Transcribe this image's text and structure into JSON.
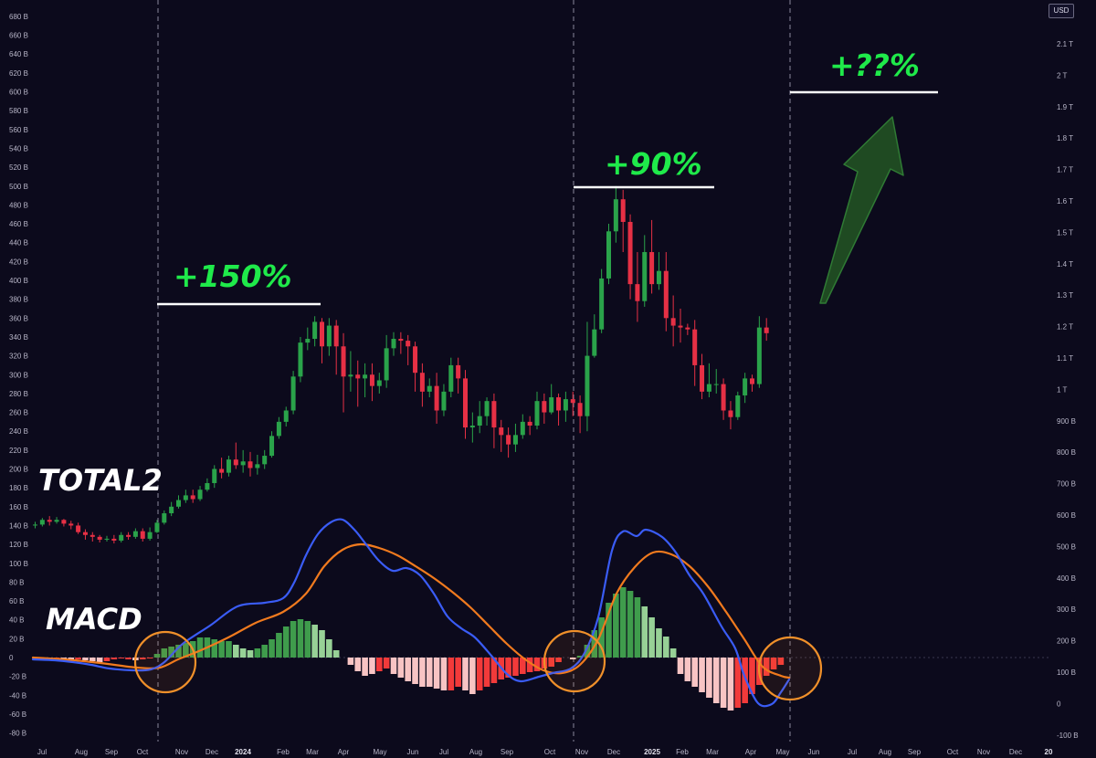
{
  "chart_data": {
    "type": "candlestick",
    "symbol": "TOTAL2",
    "currency": "USD",
    "grid": false,
    "left_axis": {
      "ticks": [
        "680 B",
        "660 B",
        "640 B",
        "620 B",
        "600 B",
        "580 B",
        "560 B",
        "540 B",
        "520 B",
        "500 B",
        "480 B",
        "460 B",
        "440 B",
        "420 B",
        "400 B",
        "380 B",
        "360 B",
        "340 B",
        "320 B",
        "300 B",
        "280 B",
        "260 B",
        "240 B",
        "220 B",
        "200 B",
        "180 B",
        "160 B",
        "140 B",
        "120 B",
        "100 B",
        "80 B",
        "60 B",
        "40 B",
        "20 B",
        "0",
        "-20 B",
        "-40 B",
        "-60 B",
        "-80 B"
      ],
      "range_billions": [
        -80,
        680
      ]
    },
    "right_axis": {
      "ticks": [
        "2.1 T",
        "2 T",
        "1.9 T",
        "1.8 T",
        "1.7 T",
        "1.6 T",
        "1.5 T",
        "1.4 T",
        "1.3 T",
        "1.2 T",
        "1.1 T",
        "1 T",
        "900 B",
        "800 B",
        "700 B",
        "600 B",
        "500 B",
        "400 B",
        "300 B",
        "200 B",
        "100 B",
        "0",
        "-100 B"
      ],
      "range_billions": [
        -100,
        2100
      ]
    },
    "x_axis": {
      "ticks": [
        {
          "label": "Jul",
          "bold": false
        },
        {
          "label": "Aug",
          "bold": false
        },
        {
          "label": "Sep",
          "bold": false
        },
        {
          "label": "Oct",
          "bold": false
        },
        {
          "label": "Nov",
          "bold": false
        },
        {
          "label": "Dec",
          "bold": false
        },
        {
          "label": "2024",
          "bold": true
        },
        {
          "label": "Feb",
          "bold": false
        },
        {
          "label": "Mar",
          "bold": false
        },
        {
          "label": "Apr",
          "bold": false
        },
        {
          "label": "May",
          "bold": false
        },
        {
          "label": "Jun",
          "bold": false
        },
        {
          "label": "Jul",
          "bold": false
        },
        {
          "label": "Aug",
          "bold": false
        },
        {
          "label": "Sep",
          "bold": false
        },
        {
          "label": "Oct",
          "bold": false
        },
        {
          "label": "Nov",
          "bold": false
        },
        {
          "label": "Dec",
          "bold": false
        },
        {
          "label": "2025",
          "bold": true
        },
        {
          "label": "Feb",
          "bold": false
        },
        {
          "label": "Mar",
          "bold": false
        },
        {
          "label": "Apr",
          "bold": false
        },
        {
          "label": "May",
          "bold": false
        },
        {
          "label": "Jun",
          "bold": false
        },
        {
          "label": "Jul",
          "bold": false
        },
        {
          "label": "Aug",
          "bold": false
        },
        {
          "label": "Sep",
          "bold": false
        },
        {
          "label": "Oct",
          "bold": false
        },
        {
          "label": "Nov",
          "bold": false
        },
        {
          "label": "Dec",
          "bold": false
        },
        {
          "label": "20",
          "bold": true
        }
      ]
    },
    "annotations": {
      "label_total": "TOTAL2",
      "label_macd": "MACD",
      "gain1": "+150%",
      "gain2": "+90%",
      "gain3": "+??%"
    },
    "colors": {
      "up": "#2aa34a",
      "down": "#e63045",
      "macd_line": "#3a5cf5",
      "signal_line": "#f07a1e",
      "hist_pos_strong": "#3f9c4c",
      "hist_pos_weak": "#97d196",
      "hist_neg_strong": "#f23a3a",
      "hist_neg_weak": "#f8c4c4",
      "annotation_text": "#1fea4a",
      "arrow_fill": "#1f4a22"
    },
    "candles": [
      [
        140,
        141,
        144,
        137
      ],
      [
        141,
        146,
        148,
        139
      ],
      [
        146,
        144,
        150,
        140
      ],
      [
        144,
        146,
        149,
        142
      ],
      [
        146,
        142,
        147,
        139
      ],
      [
        142,
        140,
        145,
        136
      ],
      [
        140,
        133,
        143,
        131
      ],
      [
        133,
        130,
        136,
        125
      ],
      [
        130,
        128,
        133,
        123
      ],
      [
        128,
        125,
        130,
        122
      ],
      [
        125,
        126,
        129,
        123
      ],
      [
        126,
        124,
        130,
        121
      ],
      [
        124,
        130,
        133,
        122
      ],
      [
        130,
        128,
        133,
        125
      ],
      [
        128,
        134,
        137,
        126
      ],
      [
        134,
        126,
        137,
        123
      ],
      [
        126,
        133,
        138,
        124
      ],
      [
        133,
        143,
        146,
        132
      ],
      [
        143,
        153,
        156,
        141
      ],
      [
        153,
        160,
        165,
        150
      ],
      [
        160,
        167,
        172,
        158
      ],
      [
        167,
        172,
        178,
        164
      ],
      [
        172,
        168,
        178,
        164
      ],
      [
        168,
        178,
        182,
        166
      ],
      [
        178,
        185,
        190,
        176
      ],
      [
        185,
        200,
        204,
        180
      ],
      [
        200,
        196,
        212,
        190
      ],
      [
        196,
        210,
        214,
        192
      ],
      [
        210,
        204,
        228,
        200
      ],
      [
        204,
        208,
        220,
        196
      ],
      [
        208,
        201,
        218,
        192
      ],
      [
        201,
        205,
        215,
        194
      ],
      [
        205,
        214,
        220,
        200
      ],
      [
        214,
        235,
        240,
        212
      ],
      [
        235,
        250,
        255,
        232
      ],
      [
        250,
        262,
        266,
        245
      ],
      [
        262,
        298,
        304,
        258
      ],
      [
        298,
        334,
        340,
        292
      ],
      [
        334,
        338,
        350,
        326
      ],
      [
        338,
        356,
        362,
        330
      ],
      [
        356,
        330,
        360,
        312
      ],
      [
        330,
        352,
        360,
        320
      ],
      [
        352,
        330,
        358,
        300
      ],
      [
        330,
        298,
        344,
        260
      ],
      [
        298,
        300,
        325,
        282
      ],
      [
        300,
        296,
        315,
        266
      ],
      [
        296,
        300,
        312,
        276
      ],
      [
        300,
        288,
        312,
        272
      ],
      [
        288,
        294,
        302,
        280
      ],
      [
        294,
        328,
        342,
        286
      ],
      [
        328,
        338,
        345,
        320
      ],
      [
        338,
        336,
        345,
        322
      ],
      [
        336,
        330,
        342,
        310
      ],
      [
        330,
        302,
        335,
        282
      ],
      [
        302,
        282,
        312,
        266
      ],
      [
        282,
        288,
        296,
        276
      ],
      [
        288,
        262,
        302,
        248
      ],
      [
        262,
        282,
        290,
        256
      ],
      [
        282,
        310,
        318,
        276
      ],
      [
        310,
        296,
        318,
        280
      ],
      [
        296,
        244,
        305,
        232
      ],
      [
        244,
        246,
        260,
        228
      ],
      [
        246,
        256,
        272,
        238
      ],
      [
        256,
        272,
        276,
        246
      ],
      [
        272,
        244,
        280,
        222
      ],
      [
        244,
        236,
        252,
        218
      ],
      [
        236,
        226,
        244,
        212
      ],
      [
        226,
        236,
        248,
        218
      ],
      [
        236,
        250,
        258,
        232
      ],
      [
        250,
        246,
        256,
        236
      ],
      [
        246,
        272,
        282,
        242
      ],
      [
        272,
        260,
        280,
        248
      ],
      [
        260,
        276,
        290,
        258
      ],
      [
        276,
        262,
        280,
        246
      ],
      [
        262,
        274,
        282,
        250
      ],
      [
        274,
        270,
        282,
        256
      ],
      [
        270,
        256,
        278,
        238
      ],
      [
        256,
        320,
        356,
        240
      ],
      [
        320,
        348,
        364,
        318
      ],
      [
        348,
        402,
        412,
        344
      ],
      [
        402,
        452,
        460,
        396
      ],
      [
        452,
        486,
        500,
        440
      ],
      [
        486,
        462,
        496,
        430
      ],
      [
        462,
        396,
        470,
        380
      ],
      [
        396,
        378,
        430,
        356
      ],
      [
        378,
        430,
        448,
        372
      ],
      [
        430,
        396,
        464,
        386
      ],
      [
        396,
        410,
        430,
        390
      ],
      [
        410,
        360,
        430,
        346
      ],
      [
        360,
        352,
        384,
        330
      ],
      [
        352,
        350,
        370,
        334
      ],
      [
        350,
        348,
        354,
        342
      ],
      [
        348,
        310,
        358,
        288
      ],
      [
        310,
        282,
        322,
        274
      ],
      [
        282,
        290,
        312,
        276
      ],
      [
        290,
        290,
        306,
        280
      ],
      [
        290,
        262,
        296,
        252
      ],
      [
        262,
        255,
        272,
        242
      ],
      [
        255,
        278,
        282,
        252
      ],
      [
        278,
        296,
        302,
        270
      ],
      [
        296,
        290,
        300,
        282
      ],
      [
        290,
        350,
        362,
        286
      ],
      [
        350,
        344,
        360,
        336
      ]
    ],
    "macd_line": [
      [
        36,
        722
      ],
      [
        60,
        723
      ],
      [
        80,
        725
      ],
      [
        100,
        728
      ],
      [
        120,
        732
      ],
      [
        145,
        734
      ],
      [
        165,
        733
      ],
      [
        180,
        725
      ],
      [
        200,
        705
      ],
      [
        230,
        685
      ],
      [
        260,
        664
      ],
      [
        290,
        660
      ],
      [
        310,
        655
      ],
      [
        322,
        638
      ],
      [
        335,
        608
      ],
      [
        348,
        585
      ],
      [
        362,
        572
      ],
      [
        375,
        569
      ],
      [
        388,
        580
      ],
      [
        400,
        595
      ],
      [
        415,
        614
      ],
      [
        430,
        625
      ],
      [
        445,
        622
      ],
      [
        460,
        630
      ],
      [
        475,
        650
      ],
      [
        490,
        675
      ],
      [
        505,
        688
      ],
      [
        520,
        698
      ],
      [
        538,
        718
      ],
      [
        555,
        738
      ],
      [
        570,
        746
      ],
      [
        590,
        741
      ],
      [
        605,
        737
      ],
      [
        625,
        732
      ],
      [
        640,
        715
      ],
      [
        655,
        676
      ],
      [
        670,
        603
      ],
      [
        682,
        582
      ],
      [
        697,
        587
      ],
      [
        707,
        580
      ],
      [
        725,
        588
      ],
      [
        740,
        605
      ],
      [
        755,
        630
      ],
      [
        770,
        650
      ],
      [
        790,
        686
      ],
      [
        805,
        710
      ],
      [
        815,
        740
      ],
      [
        830,
        770
      ],
      [
        845,
        771
      ],
      [
        855,
        758
      ],
      [
        864,
        744
      ]
    ],
    "signal_line": [
      [
        36,
        720
      ],
      [
        70,
        722
      ],
      [
        110,
        726
      ],
      [
        150,
        731
      ],
      [
        175,
        731
      ],
      [
        195,
        722
      ],
      [
        220,
        712
      ],
      [
        250,
        698
      ],
      [
        280,
        682
      ],
      [
        310,
        670
      ],
      [
        335,
        650
      ],
      [
        355,
        620
      ],
      [
        375,
        602
      ],
      [
        395,
        596
      ],
      [
        415,
        600
      ],
      [
        435,
        608
      ],
      [
        455,
        620
      ],
      [
        475,
        633
      ],
      [
        495,
        648
      ],
      [
        515,
        665
      ],
      [
        535,
        685
      ],
      [
        555,
        705
      ],
      [
        575,
        722
      ],
      [
        595,
        734
      ],
      [
        615,
        737
      ],
      [
        635,
        728
      ],
      [
        655,
        700
      ],
      [
        675,
        650
      ],
      [
        695,
        621
      ],
      [
        715,
        605
      ],
      [
        735,
        607
      ],
      [
        755,
        620
      ],
      [
        775,
        642
      ],
      [
        795,
        670
      ],
      [
        815,
        700
      ],
      [
        835,
        730
      ],
      [
        855,
        740
      ],
      [
        864,
        742
      ]
    ],
    "histogram": [
      [
        720,
        0
      ],
      [
        720,
        0
      ],
      [
        722,
        1
      ],
      [
        721,
        0
      ],
      [
        723,
        1
      ],
      [
        724,
        1
      ],
      [
        722,
        0
      ],
      [
        723,
        1
      ],
      [
        724,
        1
      ],
      [
        725,
        1
      ],
      [
        724,
        0
      ],
      [
        722,
        0
      ],
      [
        721,
        0
      ],
      [
        722,
        0
      ],
      [
        723,
        1
      ],
      [
        722,
        0
      ],
      [
        721,
        0
      ],
      [
        716,
        2
      ],
      [
        710,
        2
      ],
      [
        708,
        2
      ],
      [
        706,
        2
      ],
      [
        704,
        2
      ],
      [
        702,
        2
      ],
      [
        698,
        2
      ],
      [
        698,
        2
      ],
      [
        700,
        2
      ],
      [
        702,
        2
      ],
      [
        702,
        2
      ],
      [
        706,
        3
      ],
      [
        710,
        3
      ],
      [
        712,
        3
      ],
      [
        710,
        2
      ],
      [
        706,
        2
      ],
      [
        700,
        2
      ],
      [
        693,
        2
      ],
      [
        686,
        2
      ],
      [
        680,
        2
      ],
      [
        678,
        2
      ],
      [
        680,
        2
      ],
      [
        684,
        3
      ],
      [
        690,
        3
      ],
      [
        700,
        3
      ],
      [
        712,
        3
      ],
      [
        720,
        0
      ],
      [
        728,
        1
      ],
      [
        735,
        1
      ],
      [
        740,
        1
      ],
      [
        738,
        1
      ],
      [
        735,
        0
      ],
      [
        732,
        0
      ],
      [
        738,
        1
      ],
      [
        742,
        1
      ],
      [
        746,
        1
      ],
      [
        749,
        1
      ],
      [
        752,
        1
      ],
      [
        752,
        1
      ],
      [
        754,
        1
      ],
      [
        756,
        1
      ],
      [
        756,
        0
      ],
      [
        752,
        0
      ],
      [
        756,
        1
      ],
      [
        760,
        1
      ],
      [
        756,
        0
      ],
      [
        752,
        0
      ],
      [
        748,
        0
      ],
      [
        744,
        0
      ],
      [
        742,
        0
      ],
      [
        740,
        0
      ],
      [
        738,
        0
      ],
      [
        736,
        0
      ],
      [
        735,
        0
      ],
      [
        732,
        0
      ],
      [
        730,
        0
      ],
      [
        725,
        0
      ],
      [
        720,
        0
      ],
      [
        722,
        1
      ],
      [
        718,
        2
      ],
      [
        706,
        2
      ],
      [
        690,
        2
      ],
      [
        676,
        2
      ],
      [
        660,
        2
      ],
      [
        650,
        2
      ],
      [
        643,
        2
      ],
      [
        647,
        2
      ],
      [
        654,
        2
      ],
      [
        664,
        3
      ],
      [
        676,
        3
      ],
      [
        688,
        3
      ],
      [
        697,
        3
      ],
      [
        710,
        3
      ],
      [
        738,
        1
      ],
      [
        746,
        1
      ],
      [
        752,
        1
      ],
      [
        758,
        1
      ],
      [
        764,
        1
      ],
      [
        770,
        1
      ],
      [
        775,
        1
      ],
      [
        778,
        1
      ],
      [
        775,
        0
      ],
      [
        770,
        0
      ],
      [
        760,
        0
      ],
      [
        750,
        0
      ],
      [
        740,
        0
      ],
      [
        733,
        0
      ],
      [
        728,
        0
      ]
    ]
  }
}
